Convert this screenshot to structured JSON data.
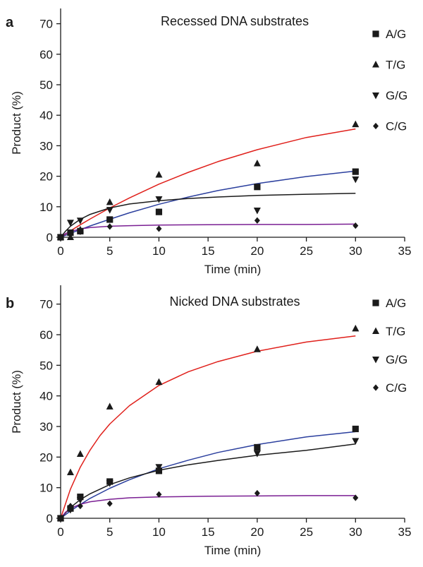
{
  "chart_data": [
    {
      "type": "scatter",
      "panel": "a",
      "title": "Recessed DNA substrates",
      "xlabel": "Time (min)",
      "ylabel": "Product (%)",
      "xlim": [
        0,
        35
      ],
      "ylim": [
        0,
        75
      ],
      "xticks": [
        0,
        5,
        10,
        15,
        20,
        25,
        30,
        35
      ],
      "yticks": [
        0,
        10,
        20,
        30,
        40,
        50,
        60,
        70
      ],
      "legend_position": "top-right",
      "series": [
        {
          "name": "A/G",
          "marker": "square",
          "color": "#2b3f9e",
          "points": [
            [
              0,
              0
            ],
            [
              1,
              1.5
            ],
            [
              2,
              2.0
            ],
            [
              5,
              5.8
            ],
            [
              10,
              8.3
            ],
            [
              20,
              16.5
            ],
            [
              30,
              21.5
            ]
          ],
          "fit": [
            [
              0,
              0
            ],
            [
              1,
              1.3
            ],
            [
              2,
              2.5
            ],
            [
              3,
              3.7
            ],
            [
              5,
              5.9
            ],
            [
              7,
              8.0
            ],
            [
              10,
              10.8
            ],
            [
              13,
              13.2
            ],
            [
              16,
              15.3
            ],
            [
              20,
              17.6
            ],
            [
              25,
              19.9
            ],
            [
              30,
              21.7
            ]
          ]
        },
        {
          "name": "T/G",
          "marker": "triangle-up",
          "color": "#e0201b",
          "points": [
            [
              0,
              0
            ],
            [
              1,
              0
            ],
            [
              2,
              2.5
            ],
            [
              5,
              11.5
            ],
            [
              10,
              20.5
            ],
            [
              20,
              24.2
            ],
            [
              30,
              37.0
            ]
          ],
          "fit": [
            [
              0,
              0
            ],
            [
              1,
              2.1
            ],
            [
              2,
              4.1
            ],
            [
              3,
              6.0
            ],
            [
              5,
              9.6
            ],
            [
              7,
              12.9
            ],
            [
              10,
              17.4
            ],
            [
              13,
              21.3
            ],
            [
              16,
              24.8
            ],
            [
              20,
              28.7
            ],
            [
              25,
              32.7
            ],
            [
              30,
              35.5
            ]
          ]
        },
        {
          "name": "G/G",
          "marker": "triangle-down",
          "color": "#1a1a1a",
          "points": [
            [
              0,
              0
            ],
            [
              1,
              4.8
            ],
            [
              2,
              5.5
            ],
            [
              5,
              9.0
            ],
            [
              10,
              12.5
            ],
            [
              20,
              8.8
            ],
            [
              30,
              19.0
            ]
          ],
          "fit": [
            [
              0,
              0
            ],
            [
              0.5,
              2.0
            ],
            [
              1,
              3.6
            ],
            [
              2,
              5.9
            ],
            [
              3,
              7.5
            ],
            [
              5,
              9.6
            ],
            [
              7,
              10.9
            ],
            [
              10,
              12.0
            ],
            [
              13,
              12.7
            ],
            [
              16,
              13.2
            ],
            [
              20,
              13.7
            ],
            [
              25,
              14.1
            ],
            [
              30,
              14.4
            ]
          ]
        },
        {
          "name": "C/G",
          "marker": "diamond",
          "color": "#7a1f93",
          "points": [
            [
              0,
              0
            ],
            [
              1,
              1.5
            ],
            [
              2,
              1.8
            ],
            [
              5,
              3.5
            ],
            [
              10,
              2.8
            ],
            [
              20,
              5.5
            ],
            [
              30,
              3.8
            ]
          ],
          "fit": [
            [
              0,
              0
            ],
            [
              0.5,
              1.2
            ],
            [
              1,
              1.9
            ],
            [
              2,
              2.7
            ],
            [
              3,
              3.2
            ],
            [
              5,
              3.6
            ],
            [
              7,
              3.8
            ],
            [
              10,
              4.0
            ],
            [
              15,
              4.1
            ],
            [
              20,
              4.2
            ],
            [
              25,
              4.2
            ],
            [
              30,
              4.3
            ]
          ]
        }
      ]
    },
    {
      "type": "scatter",
      "panel": "b",
      "title": "Nicked DNA substrates",
      "xlabel": "Time (min)",
      "ylabel": "Product (%)",
      "xlim": [
        0,
        35
      ],
      "ylim": [
        0,
        75
      ],
      "xticks": [
        0,
        5,
        10,
        15,
        20,
        25,
        30,
        35
      ],
      "yticks": [
        0,
        10,
        20,
        30,
        40,
        50,
        60,
        70
      ],
      "legend_position": "top-right",
      "series": [
        {
          "name": "A/G",
          "marker": "square",
          "color": "#2b3f9e",
          "points": [
            [
              0,
              0
            ],
            [
              1,
              3.2
            ],
            [
              2,
              7.0
            ],
            [
              5,
              12.0
            ],
            [
              10,
              15.5
            ],
            [
              20,
              23.2
            ],
            [
              30,
              29.2
            ]
          ],
          "fit": [
            [
              0,
              0
            ],
            [
              1,
              2.4
            ],
            [
              2,
              4.5
            ],
            [
              3,
              6.5
            ],
            [
              5,
              9.8
            ],
            [
              7,
              12.6
            ],
            [
              10,
              16.2
            ],
            [
              13,
              19.0
            ],
            [
              16,
              21.5
            ],
            [
              20,
              24.1
            ],
            [
              25,
              26.6
            ],
            [
              30,
              28.3
            ]
          ]
        },
        {
          "name": "T/G",
          "marker": "triangle-up",
          "color": "#e0201b",
          "points": [
            [
              0,
              0
            ],
            [
              1,
              15.0
            ],
            [
              2,
              21.0
            ],
            [
              5,
              36.5
            ],
            [
              10,
              44.5
            ],
            [
              20,
              55.2
            ],
            [
              30,
              62.0
            ]
          ],
          "fit": [
            [
              0,
              0
            ],
            [
              1,
              9.5
            ],
            [
              2,
              16.7
            ],
            [
              3,
              22.3
            ],
            [
              4,
              27.0
            ],
            [
              5,
              30.8
            ],
            [
              7,
              36.8
            ],
            [
              10,
              43.4
            ],
            [
              13,
              47.9
            ],
            [
              16,
              51.2
            ],
            [
              20,
              54.6
            ],
            [
              25,
              57.6
            ],
            [
              30,
              59.6
            ]
          ]
        },
        {
          "name": "G/G",
          "marker": "triangle-down",
          "color": "#1a1a1a",
          "points": [
            [
              0,
              0
            ],
            [
              1,
              2.8
            ],
            [
              2,
              6.0
            ],
            [
              5,
              11.5
            ],
            [
              10,
              16.8
            ],
            [
              20,
              21.2
            ],
            [
              30,
              25.3
            ]
          ],
          "fit": [
            [
              0,
              0
            ],
            [
              1,
              3.5
            ],
            [
              2,
              6.1
            ],
            [
              3,
              8.0
            ],
            [
              5,
              11.0
            ],
            [
              7,
              13.2
            ],
            [
              10,
              15.7
            ],
            [
              13,
              17.5
            ],
            [
              16,
              18.9
            ],
            [
              20,
              20.6
            ],
            [
              25,
              22.2
            ],
            [
              30,
              24.3
            ]
          ]
        },
        {
          "name": "C/G",
          "marker": "diamond",
          "color": "#7a1f93",
          "points": [
            [
              0,
              0
            ],
            [
              1,
              4.0
            ],
            [
              2,
              4.0
            ],
            [
              5,
              4.8
            ],
            [
              10,
              7.8
            ],
            [
              20,
              8.2
            ],
            [
              30,
              6.7
            ]
          ],
          "fit": [
            [
              0,
              0
            ],
            [
              0.5,
              2.0
            ],
            [
              1,
              3.2
            ],
            [
              2,
              4.6
            ],
            [
              3,
              5.4
            ],
            [
              5,
              6.2
            ],
            [
              7,
              6.7
            ],
            [
              10,
              7.0
            ],
            [
              15,
              7.2
            ],
            [
              20,
              7.3
            ],
            [
              25,
              7.4
            ],
            [
              30,
              7.4
            ]
          ]
        }
      ]
    }
  ]
}
